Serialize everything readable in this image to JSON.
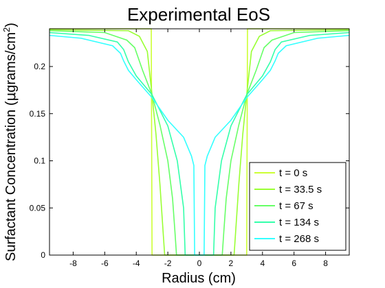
{
  "chart_data": {
    "type": "line",
    "title": "Experimental EoS",
    "xlabel": "Radius (cm)",
    "ylabel_prefix": "Surfactant Concentration (",
    "ylabel_mu": "μ",
    "ylabel_unit": "grams/cm",
    "ylabel_sup": "2",
    "ylabel_suffix": ")",
    "xlim": [
      -9.5,
      9.5
    ],
    "ylim": [
      0,
      0.24
    ],
    "xticks": [
      -8,
      -6,
      -4,
      -2,
      0,
      2,
      4,
      6,
      8
    ],
    "xtick_labels": [
      "-8",
      "-6",
      "-4",
      "-2",
      "0",
      "2",
      "4",
      "6",
      "8"
    ],
    "yticks": [
      0,
      0.05,
      0.1,
      0.15,
      0.2
    ],
    "ytick_labels": [
      "0",
      "0.05",
      "0.1",
      "0.15",
      "0.2"
    ],
    "grid": false,
    "legend_position": "bottom-right",
    "series": [
      {
        "name": "t = 0 s",
        "color": "#ccff33",
        "points": [
          [
            -9.5,
            0.24
          ],
          [
            -3.05,
            0.24
          ],
          [
            -3.0,
            0.0
          ],
          [
            3.0,
            0.0
          ],
          [
            3.05,
            0.24
          ],
          [
            9.5,
            0.24
          ]
        ]
      },
      {
        "name": "t = 33.5 s",
        "color": "#99ff33",
        "points": [
          [
            -9.5,
            0.239
          ],
          [
            -4.5,
            0.238
          ],
          [
            -3.8,
            0.232
          ],
          [
            -3.3,
            0.216
          ],
          [
            -3.0,
            0.17
          ],
          [
            -2.75,
            0.128
          ],
          [
            -2.5,
            0.075
          ],
          [
            -2.3,
            0.025
          ],
          [
            -2.2,
            0.0
          ],
          [
            2.2,
            0.0
          ],
          [
            2.3,
            0.025
          ],
          [
            2.5,
            0.075
          ],
          [
            2.75,
            0.128
          ],
          [
            3.0,
            0.17
          ],
          [
            3.3,
            0.216
          ],
          [
            3.8,
            0.232
          ],
          [
            4.5,
            0.238
          ],
          [
            9.5,
            0.239
          ]
        ]
      },
      {
        "name": "t = 67 s",
        "color": "#66ff66",
        "points": [
          [
            -9.5,
            0.238
          ],
          [
            -6.0,
            0.236
          ],
          [
            -4.6,
            0.228
          ],
          [
            -4.1,
            0.22
          ],
          [
            -3.6,
            0.196
          ],
          [
            -3.0,
            0.17
          ],
          [
            -2.5,
            0.138
          ],
          [
            -2.0,
            0.1
          ],
          [
            -1.7,
            0.06
          ],
          [
            -1.55,
            0.025
          ],
          [
            -1.45,
            0.0
          ],
          [
            1.45,
            0.0
          ],
          [
            1.55,
            0.025
          ],
          [
            1.7,
            0.06
          ],
          [
            2.0,
            0.1
          ],
          [
            2.5,
            0.138
          ],
          [
            3.0,
            0.17
          ],
          [
            3.6,
            0.196
          ],
          [
            4.1,
            0.22
          ],
          [
            4.6,
            0.228
          ],
          [
            6.0,
            0.236
          ],
          [
            9.5,
            0.238
          ]
        ]
      },
      {
        "name": "t = 134 s",
        "color": "#33ffaa",
        "points": [
          [
            -9.5,
            0.236
          ],
          [
            -7.0,
            0.233
          ],
          [
            -5.2,
            0.226
          ],
          [
            -4.8,
            0.218
          ],
          [
            -4.5,
            0.205
          ],
          [
            -4.0,
            0.19
          ],
          [
            -3.0,
            0.17
          ],
          [
            -2.0,
            0.137
          ],
          [
            -1.4,
            0.1
          ],
          [
            -1.0,
            0.05
          ],
          [
            -0.9,
            0.0
          ],
          [
            0.9,
            0.0
          ],
          [
            1.0,
            0.05
          ],
          [
            1.4,
            0.1
          ],
          [
            2.0,
            0.137
          ],
          [
            3.0,
            0.17
          ],
          [
            4.0,
            0.19
          ],
          [
            4.5,
            0.205
          ],
          [
            4.8,
            0.218
          ],
          [
            5.2,
            0.226
          ],
          [
            7.0,
            0.233
          ],
          [
            9.5,
            0.236
          ]
        ]
      },
      {
        "name": "t = 268 s",
        "color": "#33ffff",
        "points": [
          [
            -9.5,
            0.233
          ],
          [
            -7.5,
            0.23
          ],
          [
            -5.5,
            0.222
          ],
          [
            -5.0,
            0.214
          ],
          [
            -4.8,
            0.206
          ],
          [
            -4.5,
            0.196
          ],
          [
            -4.0,
            0.186
          ],
          [
            -3.0,
            0.167
          ],
          [
            -2.0,
            0.143
          ],
          [
            -1.0,
            0.125
          ],
          [
            -0.5,
            0.105
          ],
          [
            -0.35,
            0.095
          ],
          [
            -0.3,
            0.0
          ],
          [
            0.3,
            0.0
          ],
          [
            0.35,
            0.095
          ],
          [
            0.5,
            0.105
          ],
          [
            1.0,
            0.125
          ],
          [
            2.0,
            0.143
          ],
          [
            3.0,
            0.167
          ],
          [
            4.0,
            0.186
          ],
          [
            4.5,
            0.196
          ],
          [
            4.8,
            0.206
          ],
          [
            5.0,
            0.214
          ],
          [
            5.5,
            0.222
          ],
          [
            7.5,
            0.23
          ],
          [
            9.5,
            0.233
          ]
        ]
      }
    ]
  }
}
